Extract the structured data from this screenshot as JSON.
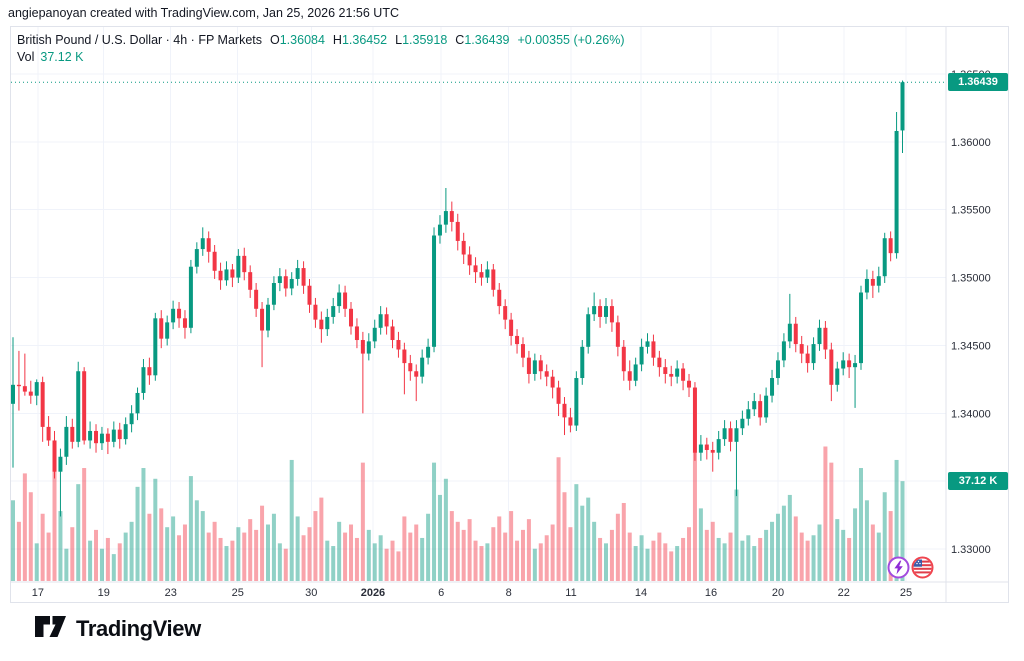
{
  "attribution": "angiepanoyan created with TradingView.com, Jan 25, 2026 21:56 UTC",
  "legend": {
    "title": "British Pound / U.S. Dollar · 4h · FP Markets",
    "ohlc": {
      "o_label": "O",
      "o": "1.36084",
      "h_label": "H",
      "h": "1.36452",
      "l_label": "L",
      "l": "1.35918",
      "c_label": "C",
      "c": "1.36439",
      "change": "+0.00355 (+0.26%)"
    },
    "vol_label": "Vol",
    "vol_value": "37.12 K"
  },
  "badges": {
    "price": "1.36439",
    "volume": "37.12 K"
  },
  "footer": {
    "logo_text": "TradingView"
  },
  "icons": {
    "event1": "lightning-bolt-marker",
    "event2": "us-flag-marker"
  },
  "chart_data": {
    "type": "candlestick",
    "title": "British Pound / U.S. Dollar · 4h · FP Markets",
    "ylabel": "price",
    "last_price": 1.36439,
    "last_volume": 37.12,
    "change_abs": 0.00355,
    "change_pct": 0.26,
    "ylim": [
      1.3275,
      1.36846
    ],
    "grid": true,
    "price_ticks": [
      1.365,
      1.36,
      1.355,
      1.35,
      1.345,
      1.34,
      1.335,
      1.33
    ],
    "time_ticks": [
      {
        "label": "17",
        "i": 4.2
      },
      {
        "label": "19",
        "i": 15.3
      },
      {
        "label": "23",
        "i": 26.6
      },
      {
        "label": "25",
        "i": 37.9
      },
      {
        "label": "30",
        "i": 50.3
      },
      {
        "label": "2026",
        "i": 60.7,
        "bold": true
      },
      {
        "label": "6",
        "i": 72.2
      },
      {
        "label": "8",
        "i": 83.6
      },
      {
        "label": "11",
        "i": 94.1
      },
      {
        "label": "14",
        "i": 105.9
      },
      {
        "label": "16",
        "i": 117.7
      },
      {
        "label": "20",
        "i": 129
      },
      {
        "label": "22",
        "i": 140.1
      },
      {
        "label": "25",
        "i": 150.6
      }
    ],
    "colors": {
      "up": "#089981",
      "down": "#f23645",
      "vol_up": "rgba(8,153,129,0.45)",
      "vol_down": "rgba(242,54,69,0.45)",
      "grid": "#f0f3fa",
      "axis_text": "#2a2e39",
      "border": "#e0e3eb",
      "last_price_line": "#089981",
      "badge_bg": "#089981"
    },
    "candles_format": [
      "open",
      "high",
      "low",
      "close",
      "volume_k"
    ],
    "candles": [
      [
        1.3407,
        1.3456,
        1.336,
        1.3421,
        30
      ],
      [
        1.3421,
        1.3446,
        1.3402,
        1.342,
        22
      ],
      [
        1.342,
        1.3444,
        1.3413,
        1.3416,
        40
      ],
      [
        1.3416,
        1.3424,
        1.3407,
        1.3413,
        33
      ],
      [
        1.3413,
        1.3425,
        1.3406,
        1.3423,
        14
      ],
      [
        1.3423,
        1.3427,
        1.3379,
        1.339,
        25
      ],
      [
        1.339,
        1.3398,
        1.3376,
        1.338,
        18
      ],
      [
        1.338,
        1.3387,
        1.3352,
        1.3357,
        45
      ],
      [
        1.3357,
        1.3374,
        1.3324,
        1.3368,
        26
      ],
      [
        1.3368,
        1.3398,
        1.3362,
        1.339,
        12
      ],
      [
        1.339,
        1.3396,
        1.3374,
        1.3379,
        20
      ],
      [
        1.3379,
        1.3438,
        1.3375,
        1.3431,
        36
      ],
      [
        1.3431,
        1.3434,
        1.3377,
        1.338,
        42
      ],
      [
        1.338,
        1.3394,
        1.3374,
        1.3387,
        15
      ],
      [
        1.3387,
        1.3392,
        1.3371,
        1.3378,
        19
      ],
      [
        1.3378,
        1.339,
        1.3373,
        1.3385,
        12
      ],
      [
        1.3385,
        1.3389,
        1.337,
        1.3379,
        16
      ],
      [
        1.3379,
        1.3394,
        1.3375,
        1.3388,
        10
      ],
      [
        1.3388,
        1.3393,
        1.3374,
        1.3381,
        14
      ],
      [
        1.3381,
        1.3397,
        1.3377,
        1.3392,
        18
      ],
      [
        1.3392,
        1.3406,
        1.3386,
        1.34,
        22
      ],
      [
        1.34,
        1.3419,
        1.3395,
        1.3415,
        35
      ],
      [
        1.3415,
        1.344,
        1.341,
        1.3434,
        42
      ],
      [
        1.3434,
        1.3441,
        1.3421,
        1.3428,
        25
      ],
      [
        1.3428,
        1.3474,
        1.3424,
        1.347,
        38
      ],
      [
        1.347,
        1.3476,
        1.3448,
        1.3455,
        27
      ],
      [
        1.3455,
        1.3472,
        1.345,
        1.3467,
        20
      ],
      [
        1.3467,
        1.3483,
        1.3462,
        1.3477,
        24
      ],
      [
        1.3477,
        1.3482,
        1.3463,
        1.347,
        17
      ],
      [
        1.347,
        1.3476,
        1.3455,
        1.3463,
        21
      ],
      [
        1.3463,
        1.3513,
        1.3459,
        1.3508,
        39
      ],
      [
        1.3508,
        1.3526,
        1.3503,
        1.3521,
        30
      ],
      [
        1.3521,
        1.3537,
        1.3516,
        1.3529,
        26
      ],
      [
        1.3529,
        1.3534,
        1.3511,
        1.3519,
        18
      ],
      [
        1.3519,
        1.3524,
        1.3499,
        1.3505,
        22
      ],
      [
        1.3505,
        1.3511,
        1.3491,
        1.3498,
        16
      ],
      [
        1.3498,
        1.3512,
        1.3494,
        1.3506,
        13
      ],
      [
        1.3506,
        1.351,
        1.3493,
        1.35,
        15
      ],
      [
        1.35,
        1.3521,
        1.3496,
        1.3516,
        20
      ],
      [
        1.3516,
        1.3522,
        1.3498,
        1.3504,
        18
      ],
      [
        1.3504,
        1.3509,
        1.3485,
        1.3491,
        23
      ],
      [
        1.3491,
        1.3496,
        1.3471,
        1.3477,
        19
      ],
      [
        1.3477,
        1.3482,
        1.3434,
        1.3461,
        28
      ],
      [
        1.3461,
        1.3485,
        1.3456,
        1.348,
        21
      ],
      [
        1.348,
        1.3501,
        1.3476,
        1.3496,
        25
      ],
      [
        1.3496,
        1.3507,
        1.349,
        1.3501,
        14
      ],
      [
        1.3501,
        1.3506,
        1.3486,
        1.3492,
        12
      ],
      [
        1.3492,
        1.3504,
        1.3487,
        1.3499,
        45
      ],
      [
        1.3499,
        1.3513,
        1.3494,
        1.3507,
        24
      ],
      [
        1.3507,
        1.3512,
        1.3488,
        1.3494,
        17
      ],
      [
        1.3494,
        1.3499,
        1.3474,
        1.348,
        20
      ],
      [
        1.348,
        1.3485,
        1.3463,
        1.3469,
        26
      ],
      [
        1.3469,
        1.3475,
        1.3452,
        1.3462,
        31
      ],
      [
        1.3462,
        1.3477,
        1.3457,
        1.3471,
        15
      ],
      [
        1.3471,
        1.3485,
        1.3466,
        1.3479,
        13
      ],
      [
        1.3479,
        1.3495,
        1.3474,
        1.3489,
        22
      ],
      [
        1.3489,
        1.3494,
        1.3471,
        1.3477,
        18
      ],
      [
        1.3477,
        1.3482,
        1.3458,
        1.3464,
        21
      ],
      [
        1.3464,
        1.347,
        1.3448,
        1.3454,
        16
      ],
      [
        1.3454,
        1.346,
        1.34,
        1.3444,
        44
      ],
      [
        1.3444,
        1.3459,
        1.3439,
        1.3453,
        19
      ],
      [
        1.3453,
        1.3469,
        1.3448,
        1.3463,
        14
      ],
      [
        1.3463,
        1.3479,
        1.3458,
        1.3473,
        17
      ],
      [
        1.3473,
        1.3478,
        1.3458,
        1.3464,
        12
      ],
      [
        1.3464,
        1.3469,
        1.3448,
        1.3454,
        15
      ],
      [
        1.3454,
        1.346,
        1.3441,
        1.3447,
        11
      ],
      [
        1.3447,
        1.3452,
        1.3414,
        1.3437,
        24
      ],
      [
        1.3437,
        1.3443,
        1.3424,
        1.3431,
        18
      ],
      [
        1.3431,
        1.3436,
        1.3409,
        1.3427,
        21
      ],
      [
        1.3427,
        1.3447,
        1.3422,
        1.3441,
        16
      ],
      [
        1.3441,
        1.3455,
        1.3436,
        1.3449,
        25
      ],
      [
        1.3449,
        1.3537,
        1.3445,
        1.3531,
        44
      ],
      [
        1.3531,
        1.3546,
        1.3525,
        1.3539,
        32
      ],
      [
        1.3539,
        1.3566,
        1.3533,
        1.3549,
        38
      ],
      [
        1.3549,
        1.3556,
        1.3534,
        1.3541,
        26
      ],
      [
        1.3541,
        1.3547,
        1.352,
        1.3527,
        22
      ],
      [
        1.3527,
        1.3533,
        1.351,
        1.3517,
        19
      ],
      [
        1.3517,
        1.3523,
        1.3502,
        1.3509,
        23
      ],
      [
        1.3509,
        1.3515,
        1.3496,
        1.3504,
        15
      ],
      [
        1.3504,
        1.351,
        1.3494,
        1.35,
        13
      ],
      [
        1.35,
        1.3512,
        1.3496,
        1.3506,
        14
      ],
      [
        1.3506,
        1.351,
        1.3486,
        1.3491,
        20
      ],
      [
        1.3491,
        1.3496,
        1.3473,
        1.3479,
        24
      ],
      [
        1.3479,
        1.3484,
        1.3462,
        1.3469,
        18
      ],
      [
        1.3469,
        1.3474,
        1.345,
        1.3457,
        26
      ],
      [
        1.3457,
        1.3462,
        1.3444,
        1.3451,
        15
      ],
      [
        1.3451,
        1.3456,
        1.3434,
        1.3441,
        19
      ],
      [
        1.3441,
        1.3446,
        1.3422,
        1.3429,
        23
      ],
      [
        1.3429,
        1.3444,
        1.3424,
        1.3439,
        12
      ],
      [
        1.3439,
        1.3443,
        1.3425,
        1.3431,
        14
      ],
      [
        1.3431,
        1.3436,
        1.342,
        1.3427,
        17
      ],
      [
        1.3427,
        1.3432,
        1.3411,
        1.3419,
        21
      ],
      [
        1.3419,
        1.3424,
        1.3398,
        1.3407,
        46
      ],
      [
        1.3407,
        1.3412,
        1.3384,
        1.3397,
        33
      ],
      [
        1.3397,
        1.3404,
        1.3386,
        1.3391,
        20
      ],
      [
        1.3391,
        1.3431,
        1.3387,
        1.3426,
        36
      ],
      [
        1.3426,
        1.3454,
        1.3421,
        1.3449,
        28
      ],
      [
        1.3449,
        1.3478,
        1.3444,
        1.3473,
        31
      ],
      [
        1.3473,
        1.3489,
        1.3468,
        1.3479,
        22
      ],
      [
        1.3479,
        1.3484,
        1.3463,
        1.3471,
        16
      ],
      [
        1.3471,
        1.3485,
        1.3466,
        1.3479,
        14
      ],
      [
        1.3479,
        1.3484,
        1.346,
        1.3467,
        19
      ],
      [
        1.3467,
        1.3472,
        1.3442,
        1.3449,
        25
      ],
      [
        1.3449,
        1.3454,
        1.3424,
        1.3431,
        29
      ],
      [
        1.3431,
        1.3439,
        1.3417,
        1.3424,
        18
      ],
      [
        1.3424,
        1.3441,
        1.342,
        1.3436,
        13
      ],
      [
        1.3436,
        1.3455,
        1.3431,
        1.3449,
        17
      ],
      [
        1.3449,
        1.3459,
        1.3444,
        1.3453,
        12
      ],
      [
        1.3453,
        1.3458,
        1.3435,
        1.3441,
        15
      ],
      [
        1.3441,
        1.3446,
        1.3427,
        1.3434,
        18
      ],
      [
        1.3434,
        1.344,
        1.3422,
        1.3429,
        14
      ],
      [
        1.3429,
        1.3435,
        1.342,
        1.3427,
        11
      ],
      [
        1.3427,
        1.3439,
        1.3422,
        1.3433,
        13
      ],
      [
        1.3433,
        1.3437,
        1.3417,
        1.3424,
        16
      ],
      [
        1.3424,
        1.3429,
        1.3412,
        1.3419,
        20
      ],
      [
        1.3419,
        1.3423,
        1.3365,
        1.3371,
        48
      ],
      [
        1.3371,
        1.3384,
        1.3365,
        1.3377,
        27
      ],
      [
        1.3377,
        1.3382,
        1.3366,
        1.3373,
        19
      ],
      [
        1.3373,
        1.3379,
        1.3357,
        1.3371,
        22
      ],
      [
        1.3371,
        1.3387,
        1.3366,
        1.3381,
        16
      ],
      [
        1.3381,
        1.3395,
        1.3376,
        1.3389,
        14
      ],
      [
        1.3389,
        1.3394,
        1.3372,
        1.3379,
        18
      ],
      [
        1.3379,
        1.3395,
        1.3339,
        1.3389,
        34
      ],
      [
        1.3389,
        1.3402,
        1.3384,
        1.3396,
        15
      ],
      [
        1.3396,
        1.3409,
        1.3391,
        1.3403,
        17
      ],
      [
        1.3403,
        1.3415,
        1.3398,
        1.3409,
        13
      ],
      [
        1.3409,
        1.3414,
        1.3391,
        1.3397,
        16
      ],
      [
        1.3397,
        1.3419,
        1.3393,
        1.3413,
        19
      ],
      [
        1.3413,
        1.3432,
        1.3408,
        1.3426,
        22
      ],
      [
        1.3426,
        1.3445,
        1.3421,
        1.3439,
        25
      ],
      [
        1.3439,
        1.3459,
        1.3434,
        1.3453,
        28
      ],
      [
        1.3453,
        1.3488,
        1.3448,
        1.3466,
        32
      ],
      [
        1.3466,
        1.3471,
        1.3445,
        1.3451,
        24
      ],
      [
        1.3451,
        1.3457,
        1.3437,
        1.3444,
        18
      ],
      [
        1.3444,
        1.345,
        1.343,
        1.3437,
        15
      ],
      [
        1.3437,
        1.3456,
        1.3432,
        1.3451,
        17
      ],
      [
        1.3451,
        1.3469,
        1.3446,
        1.3463,
        21
      ],
      [
        1.3463,
        1.3468,
        1.344,
        1.3447,
        50
      ],
      [
        1.3447,
        1.3452,
        1.3409,
        1.3421,
        44
      ],
      [
        1.3421,
        1.3438,
        1.3416,
        1.3433,
        23
      ],
      [
        1.3433,
        1.3445,
        1.3428,
        1.3439,
        19
      ],
      [
        1.3439,
        1.3444,
        1.3426,
        1.3434,
        16
      ],
      [
        1.3434,
        1.3443,
        1.3404,
        1.3437,
        27
      ],
      [
        1.3437,
        1.3494,
        1.3432,
        1.3489,
        42
      ],
      [
        1.3489,
        1.3506,
        1.3484,
        1.3499,
        30
      ],
      [
        1.3499,
        1.3505,
        1.3485,
        1.3494,
        21
      ],
      [
        1.3494,
        1.3508,
        1.3489,
        1.3501,
        18
      ],
      [
        1.3501,
        1.3533,
        1.3496,
        1.3529,
        33
      ],
      [
        1.3529,
        1.3534,
        1.3512,
        1.3518,
        26
      ],
      [
        1.3518,
        1.3622,
        1.3514,
        1.3608,
        45
      ],
      [
        1.36084,
        1.36452,
        1.35918,
        1.36439,
        37.12
      ]
    ]
  }
}
